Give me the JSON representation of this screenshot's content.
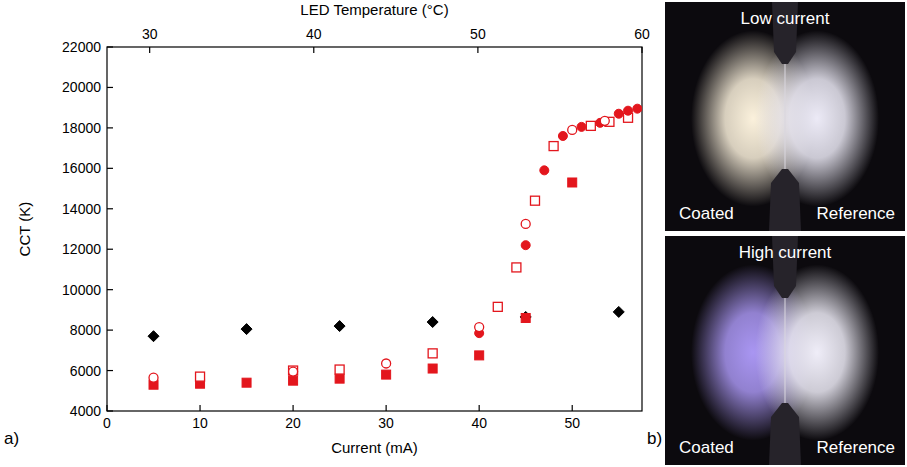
{
  "chart_data": {
    "type": "scatter",
    "x_label": "Current (mA)",
    "y_label": "CCT (K)",
    "x2_label": "LED Temperature (°C)",
    "xlim": [
      0,
      57.5
    ],
    "xticks": [
      0,
      10,
      20,
      30,
      40,
      50
    ],
    "ylim": [
      4000,
      22000
    ],
    "yticks": [
      4000,
      6000,
      8000,
      10000,
      12000,
      14000,
      16000,
      18000,
      20000,
      22000
    ],
    "x2lim": [
      27.4,
      60
    ],
    "x2ticks": [
      30,
      40,
      50,
      60
    ],
    "grid": false,
    "series": [
      {
        "color": "#000000",
        "marker": "diamond",
        "x": [
          5,
          15,
          25,
          35,
          45,
          55
        ],
        "values": [
          7700,
          8050,
          8200,
          8400,
          8650,
          8900
        ]
      },
      {
        "color": "#e3161d",
        "marker": "square",
        "x": [
          5,
          10,
          15,
          20,
          25,
          30,
          35,
          40,
          45,
          50
        ],
        "values": [
          5300,
          5350,
          5400,
          5500,
          5600,
          5800,
          6100,
          6750,
          8600,
          15300
        ]
      },
      {
        "color": "#e3161d",
        "marker": "open-square",
        "x": [
          10,
          20,
          25,
          35,
          42,
          44,
          46,
          48,
          52,
          54,
          56
        ],
        "values": [
          5700,
          6000,
          6050,
          6850,
          9150,
          11100,
          14400,
          17100,
          18100,
          18300,
          18500
        ]
      },
      {
        "color": "#e3161d",
        "marker": "circle",
        "x": [
          40,
          45,
          47,
          49,
          51,
          53,
          55,
          56,
          57
        ],
        "values": [
          7850,
          12200,
          15900,
          17600,
          18050,
          18250,
          18700,
          18850,
          18950
        ]
      },
      {
        "color": "#e3161d",
        "marker": "open-circle",
        "x": [
          5,
          20,
          30,
          40,
          45,
          50,
          53.5
        ],
        "values": [
          5650,
          5950,
          6350,
          8150,
          13250,
          17900,
          18350
        ]
      }
    ]
  },
  "panel_labels": [
    "a)",
    "b)"
  ],
  "photos": [
    {
      "title": "Low current",
      "left": "Coated",
      "right": "Reference"
    },
    {
      "title": "High current",
      "left": "Coated",
      "right": "Reference"
    }
  ]
}
